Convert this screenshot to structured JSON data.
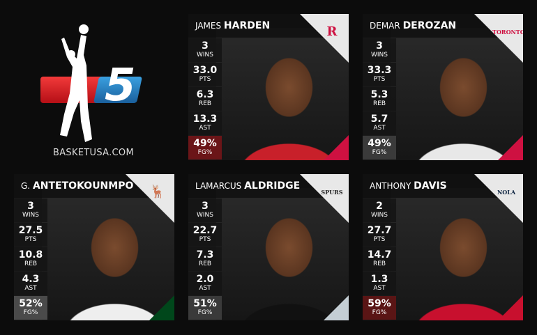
{
  "logo": {
    "number": "5",
    "site": "BASKETUSA.COM"
  },
  "stat_labels": [
    "WINS",
    "PTS",
    "REB",
    "AST",
    "FG%"
  ],
  "players": [
    {
      "first": "JAMES",
      "last": "HARDEN",
      "team_icon": "rockets-logo",
      "team_mark": "R",
      "team_color": "#ce1141",
      "accent": "#ce1141",
      "jersey": "#c8202a",
      "fg_bg": "#6b1518",
      "stats": [
        "3",
        "33.0",
        "6.3",
        "13.3",
        "49%"
      ]
    },
    {
      "first": "DEMAR",
      "last": "DEROZAN",
      "team_icon": "raptors-logo",
      "team_mark": "TORONTO",
      "team_color": "#ce1141",
      "accent": "#ce1141",
      "jersey": "#e8e8e8",
      "fg_bg": "#3a3a3a",
      "stats": [
        "3",
        "33.3",
        "5.3",
        "5.7",
        "49%"
      ]
    },
    {
      "first": "G.",
      "last": "ANTETOKOUNMPO",
      "team_icon": "bucks-logo",
      "team_mark": "🦌",
      "team_color": "#00471b",
      "accent": "#00471b",
      "jersey": "#eeeeee",
      "fg_bg": "#4a4a4a",
      "stats": [
        "3",
        "27.5",
        "10.8",
        "4.3",
        "52%"
      ]
    },
    {
      "first": "LAMARCUS",
      "last": "ALDRIDGE",
      "team_icon": "spurs-logo",
      "team_mark": "SPURS",
      "team_color": "#222222",
      "accent": "#c4ced4",
      "jersey": "#111111",
      "fg_bg": "#3a3a3a",
      "stats": [
        "3",
        "22.7",
        "7.3",
        "2.0",
        "51%"
      ]
    },
    {
      "first": "ANTHONY",
      "last": "DAVIS",
      "team_icon": "pelicans-logo",
      "team_mark": "NOLA",
      "team_color": "#0c2340",
      "accent": "#c8102e",
      "jersey": "#c8102e",
      "fg_bg": "#5a1515",
      "stats": [
        "2",
        "27.7",
        "14.7",
        "1.3",
        "59%"
      ]
    }
  ]
}
